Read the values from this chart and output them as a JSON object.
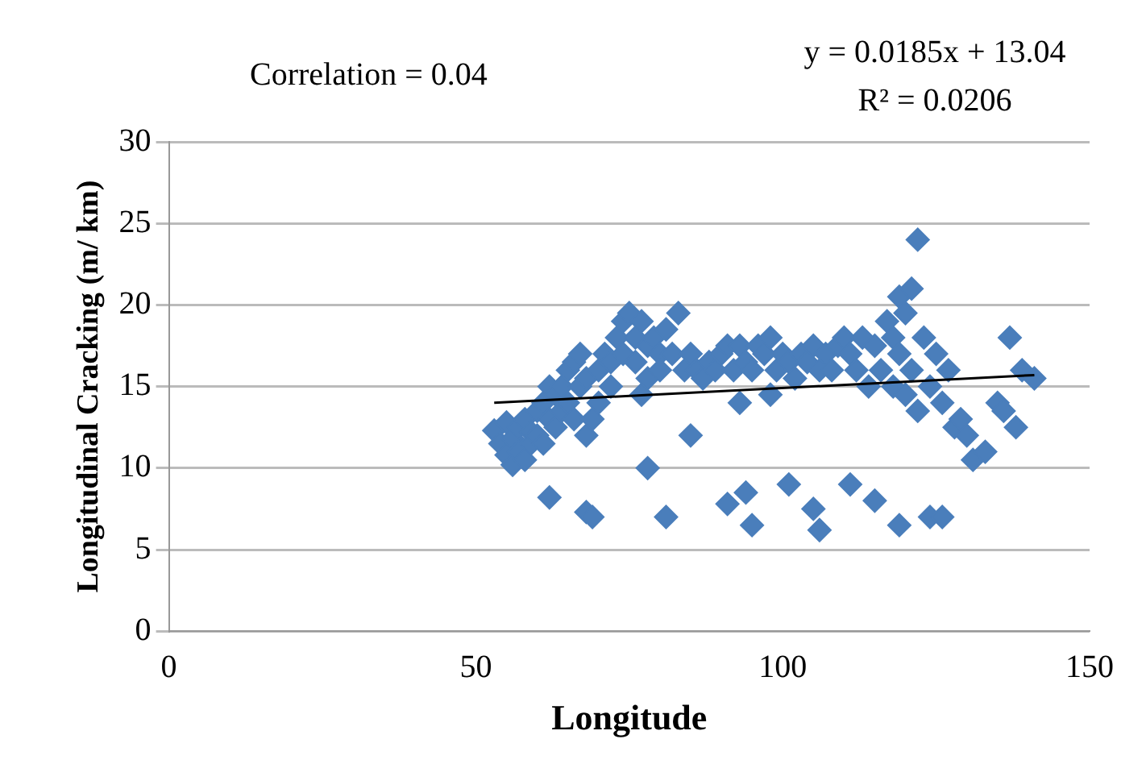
{
  "chart_data": {
    "type": "scatter",
    "xlabel": "Longitude",
    "ylabel": "Longitudinal Cracking (m/ km)",
    "annotations": [
      "Correlation = 0.04",
      "y = 0.0185x + 13.04",
      "R² = 0.0206"
    ],
    "xlim": [
      0,
      150
    ],
    "xticks": [
      0,
      50,
      100,
      150
    ],
    "ylim": [
      0,
      30
    ],
    "yticks": [
      0,
      5,
      10,
      15,
      20,
      25,
      30
    ],
    "grid": "y",
    "legend": false,
    "marker": "diamond",
    "series": [
      {
        "type": "scatter",
        "color": "#4a7ebb",
        "x": [
          53,
          54,
          55,
          55,
          56,
          56,
          57,
          57,
          58,
          58,
          59,
          59,
          60,
          60,
          61,
          61,
          62,
          62,
          63,
          63,
          64,
          64,
          65,
          65,
          66,
          66,
          67,
          67,
          68,
          68,
          69,
          70,
          70,
          71,
          72,
          72,
          73,
          74,
          74,
          75,
          76,
          76,
          77,
          78,
          78,
          79,
          80,
          80,
          81,
          82,
          83,
          84,
          85,
          86,
          87,
          88,
          89,
          90,
          91,
          92,
          93,
          94,
          95,
          96,
          97,
          98,
          99,
          100,
          101,
          102,
          103,
          104,
          105,
          106,
          107,
          108,
          109,
          110,
          111,
          112,
          113,
          114,
          115,
          116,
          117,
          118,
          118,
          119,
          119,
          120,
          120,
          121,
          121,
          122,
          122,
          123,
          124,
          125,
          126,
          127,
          128,
          129,
          130,
          131,
          133,
          135,
          136,
          137,
          138,
          139,
          141,
          62,
          68,
          69,
          81,
          78,
          85,
          91,
          94,
          95,
          101,
          105,
          106,
          111,
          115,
          119,
          124,
          126,
          93,
          98,
          77
        ],
        "values": [
          12.3,
          11.5,
          12.8,
          10.8,
          11.8,
          10.2,
          12.5,
          11,
          13,
          10.5,
          12.2,
          11.5,
          13.5,
          12,
          14,
          11.5,
          13,
          15,
          14.5,
          12.5,
          15,
          13.5,
          16,
          14,
          16.5,
          13,
          17,
          15,
          15.5,
          12,
          13,
          16,
          14,
          17,
          16.5,
          15,
          18,
          19,
          17,
          19.5,
          18,
          16.5,
          19,
          17.5,
          15.5,
          18,
          17,
          16,
          18.5,
          17,
          19.5,
          16,
          17,
          16,
          15.5,
          16.5,
          16,
          17,
          17.5,
          16,
          17.5,
          16.5,
          16,
          17.5,
          17,
          18,
          16,
          17,
          16.5,
          15.5,
          17,
          16.5,
          17.5,
          16,
          17,
          16,
          17.5,
          18,
          17,
          16,
          18,
          15,
          17.5,
          16,
          19,
          18,
          15,
          20.5,
          17,
          19.5,
          14.5,
          21,
          16,
          24,
          13.5,
          18,
          15,
          17,
          14,
          16,
          12.5,
          13,
          12,
          10.5,
          11,
          14,
          13.5,
          18,
          12.5,
          16,
          15.5,
          8.2,
          7.3,
          7,
          7,
          10,
          12,
          7.8,
          8.5,
          6.5,
          9,
          7.5,
          6.2,
          9,
          8,
          6.5,
          7,
          7,
          14,
          14.5,
          14.5
        ]
      },
      {
        "type": "line",
        "color": "#000000",
        "x": [
          53,
          141
        ],
        "values": [
          14.0,
          15.7
        ],
        "marker": "none"
      }
    ]
  }
}
